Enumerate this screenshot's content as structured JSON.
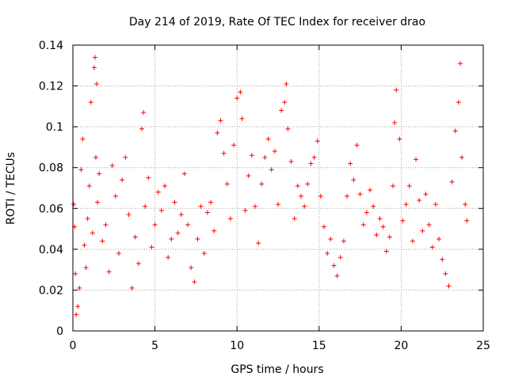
{
  "chart_data": {
    "type": "scatter",
    "title": "Day 214 of 2019, Rate Of TEC Index for receiver drao",
    "xlabel": "GPS time / hours",
    "ylabel": "ROTI / TECUs",
    "xlim": [
      0,
      25
    ],
    "ylim": [
      0,
      0.14
    ],
    "xticks": [
      "0",
      "5",
      "10",
      "15",
      "20",
      "25"
    ],
    "yticks": [
      "0",
      "0.02",
      "0.04",
      "0.06",
      "0.08",
      "0.1",
      "0.12",
      "0.14"
    ],
    "grid": true,
    "marker": "+",
    "color": "#ff0000",
    "series": [
      {
        "name": "ROTI",
        "x": [
          0.05,
          0.1,
          0.15,
          0.2,
          0.3,
          0.4,
          0.5,
          0.6,
          0.7,
          0.8,
          0.9,
          1.0,
          1.1,
          1.2,
          1.3,
          1.35,
          1.4,
          1.45,
          1.5,
          1.6,
          1.8,
          2.0,
          2.2,
          2.4,
          2.6,
          2.8,
          3.0,
          3.2,
          3.4,
          3.6,
          3.8,
          4.0,
          4.2,
          4.3,
          4.4,
          4.6,
          4.8,
          5.0,
          5.2,
          5.4,
          5.6,
          5.8,
          6.0,
          6.2,
          6.4,
          6.6,
          6.8,
          7.0,
          7.2,
          7.4,
          7.6,
          7.8,
          8.0,
          8.2,
          8.4,
          8.6,
          8.8,
          9.0,
          9.2,
          9.4,
          9.6,
          9.8,
          10.0,
          10.2,
          10.3,
          10.5,
          10.7,
          10.9,
          11.1,
          11.3,
          11.5,
          11.7,
          11.9,
          12.1,
          12.3,
          12.5,
          12.7,
          12.9,
          13.0,
          13.1,
          13.3,
          13.5,
          13.7,
          13.9,
          14.1,
          14.3,
          14.5,
          14.7,
          14.9,
          15.1,
          15.3,
          15.5,
          15.7,
          15.9,
          16.1,
          16.3,
          16.5,
          16.7,
          16.9,
          17.1,
          17.3,
          17.5,
          17.7,
          17.9,
          18.1,
          18.3,
          18.5,
          18.7,
          18.9,
          19.1,
          19.3,
          19.5,
          19.6,
          19.7,
          19.9,
          20.1,
          20.3,
          20.5,
          20.7,
          20.9,
          21.1,
          21.3,
          21.5,
          21.7,
          21.9,
          22.1,
          22.3,
          22.5,
          22.7,
          22.9,
          23.1,
          23.3,
          23.5,
          23.6,
          23.7,
          23.9,
          24.0
        ],
        "y": [
          0.062,
          0.051,
          0.028,
          0.008,
          0.012,
          0.021,
          0.079,
          0.094,
          0.042,
          0.031,
          0.055,
          0.071,
          0.112,
          0.048,
          0.129,
          0.134,
          0.085,
          0.121,
          0.063,
          0.077,
          0.044,
          0.052,
          0.029,
          0.081,
          0.066,
          0.038,
          0.074,
          0.085,
          0.057,
          0.021,
          0.046,
          0.033,
          0.099,
          0.107,
          0.061,
          0.075,
          0.041,
          0.052,
          0.068,
          0.059,
          0.071,
          0.036,
          0.045,
          0.063,
          0.048,
          0.057,
          0.077,
          0.052,
          0.031,
          0.024,
          0.045,
          0.061,
          0.038,
          0.058,
          0.063,
          0.049,
          0.097,
          0.103,
          0.087,
          0.072,
          0.055,
          0.091,
          0.114,
          0.117,
          0.104,
          0.059,
          0.076,
          0.086,
          0.061,
          0.043,
          0.072,
          0.085,
          0.094,
          0.079,
          0.088,
          0.062,
          0.108,
          0.112,
          0.121,
          0.099,
          0.083,
          0.055,
          0.071,
          0.066,
          0.061,
          0.072,
          0.082,
          0.085,
          0.093,
          0.066,
          0.051,
          0.038,
          0.045,
          0.032,
          0.027,
          0.036,
          0.044,
          0.066,
          0.082,
          0.074,
          0.091,
          0.067,
          0.052,
          0.058,
          0.069,
          0.061,
          0.047,
          0.055,
          0.051,
          0.039,
          0.046,
          0.071,
          0.102,
          0.118,
          0.094,
          0.054,
          0.062,
          0.071,
          0.044,
          0.084,
          0.064,
          0.049,
          0.067,
          0.052,
          0.041,
          0.062,
          0.045,
          0.035,
          0.028,
          0.022,
          0.073,
          0.098,
          0.112,
          0.131,
          0.085,
          0.062,
          0.054
        ]
      }
    ]
  }
}
